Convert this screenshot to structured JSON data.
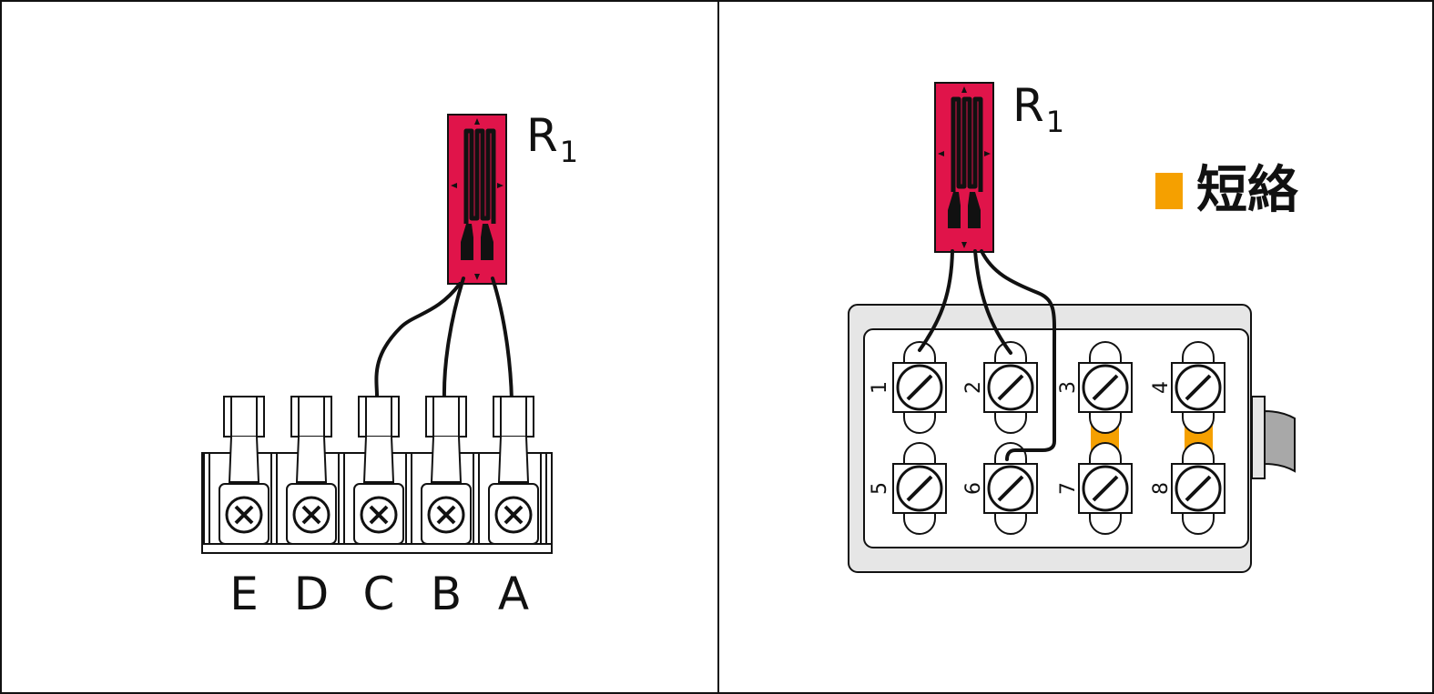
{
  "left_panel": {
    "resistor": {
      "label": "R",
      "subscript": "1"
    },
    "terminals": [
      "E",
      "D",
      "C",
      "B",
      "A"
    ]
  },
  "right_panel": {
    "resistor": {
      "label": "R",
      "subscript": "1"
    },
    "terminals": [
      "1",
      "2",
      "3",
      "4",
      "5",
      "6",
      "7",
      "8"
    ],
    "legend": {
      "label": "短絡"
    }
  },
  "colors": {
    "gauge": "#e0144a",
    "short": "#f5a000",
    "box": "#e6e6e6",
    "ink": "#111111"
  }
}
